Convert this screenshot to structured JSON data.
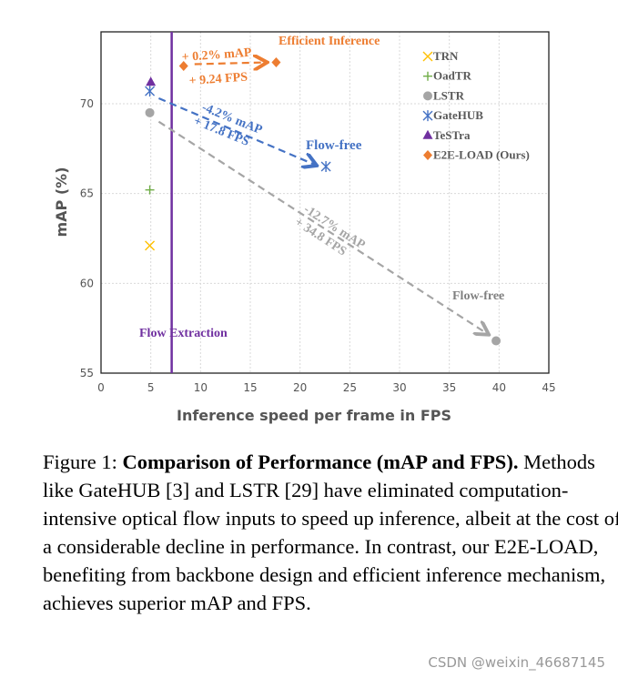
{
  "chart_data": {
    "type": "scatter",
    "xlabel": "Inference speed per frame in FPS",
    "ylabel": "mAP (%)",
    "xlim": [
      0,
      45
    ],
    "ylim": [
      55,
      74
    ],
    "xticks": [
      0,
      5,
      10,
      15,
      20,
      25,
      30,
      35,
      40,
      45
    ],
    "yticks": [
      55,
      60,
      65,
      70
    ],
    "grid": true,
    "legend_position": "top-right",
    "series": [
      {
        "name": "TRN",
        "marker": "x",
        "color": "#FFC000",
        "points": [
          [
            4.9,
            62.1
          ]
        ]
      },
      {
        "name": "OadTR",
        "marker": "+",
        "color": "#70AD47",
        "points": [
          [
            4.9,
            65.2
          ]
        ]
      },
      {
        "name": "LSTR",
        "marker": "circle",
        "color": "#A5A5A5",
        "points": [
          [
            4.9,
            69.5
          ],
          [
            39.7,
            56.8
          ]
        ]
      },
      {
        "name": "GateHUB",
        "marker": "asterisk",
        "color": "#4472C4",
        "points": [
          [
            4.9,
            70.7
          ],
          [
            22.6,
            66.5
          ]
        ]
      },
      {
        "name": "TeSTra",
        "marker": "triangle",
        "color": "#7030A0",
        "points": [
          [
            5.0,
            71.2
          ]
        ]
      },
      {
        "name": "E2E-LOAD (Ours)",
        "marker": "diamond",
        "color": "#ED7D31",
        "points": [
          [
            8.3,
            72.1
          ],
          [
            17.6,
            72.3
          ]
        ]
      }
    ],
    "vline": {
      "x": 7.1,
      "label": "Flow Extraction",
      "color": "#7030A0"
    },
    "arrows": [
      {
        "from": [
          9.4,
          72.2
        ],
        "to": [
          16.5,
          72.3
        ],
        "color": "#ED7D31"
      },
      {
        "from": [
          5.8,
          70.3
        ],
        "to": [
          21.5,
          66.6
        ],
        "color": "#4472C4"
      },
      {
        "from": [
          5.8,
          69.0
        ],
        "to": [
          38.8,
          57.2
        ],
        "color": "#A5A5A5"
      }
    ],
    "annotations": [
      {
        "text": "Efficient Inference",
        "color": "#ED7D31"
      },
      {
        "text": "+ 0.2% mAP",
        "color": "#ED7D31"
      },
      {
        "text": "+ 9.24 FPS",
        "color": "#ED7D31"
      },
      {
        "text": "-4.2% mAP",
        "color": "#4472C4"
      },
      {
        "text": "+ 17.8 FPS",
        "color": "#4472C4"
      },
      {
        "text": "Flow-free",
        "color": "#4472C4"
      },
      {
        "text": "-12.7% mAP",
        "color": "#A5A5A5"
      },
      {
        "text": "+ 34.8 FPS",
        "color": "#A5A5A5"
      },
      {
        "text": "Flow-free",
        "color": "#808080"
      }
    ]
  },
  "caption": {
    "prefix": "Figure 1: ",
    "title": "Comparison of Performance (mAP and FPS).",
    "body": " Methods like GateHUB [3] and LSTR [29] have eliminated computation-intensive optical flow inputs to speed up inference, albeit at the cost of a considerable decline in performance. In contrast, our E2E-LOAD, benefiting from backbone design and efficient inference mechanism, achieves superior mAP and FPS."
  },
  "watermark": "CSDN @weixin_46687145"
}
